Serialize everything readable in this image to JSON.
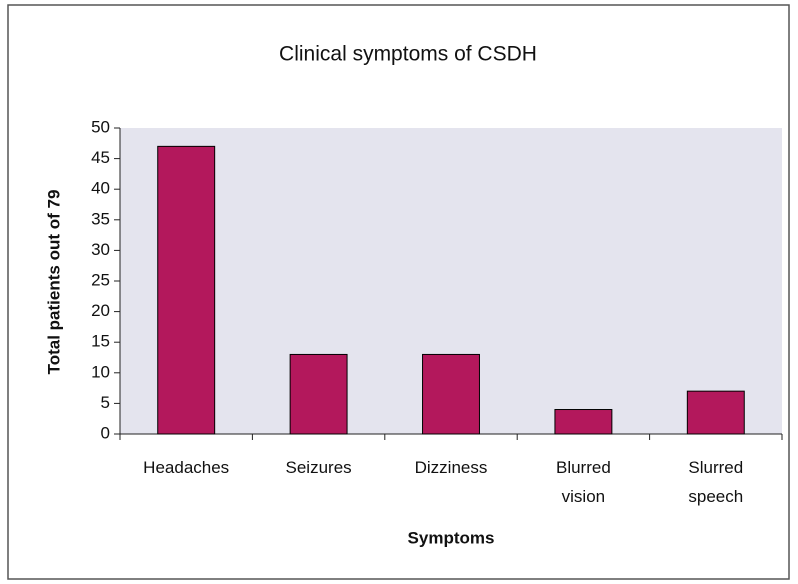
{
  "chart_data": {
    "type": "bar",
    "title": "Clinical symptoms of CSDH",
    "x_label": "Symptoms",
    "y_label": "Total patients out of 79",
    "categories": [
      "Headaches",
      "Seizures",
      "Dizziness",
      "Blurred vision",
      "Slurred speech"
    ],
    "values": [
      47,
      13,
      13,
      4,
      7
    ],
    "color": "#b3185c",
    "ylim": [
      0,
      50
    ],
    "yticks": [
      0,
      5,
      10,
      15,
      20,
      25,
      30,
      35,
      40,
      45,
      50
    ],
    "grid": false
  }
}
